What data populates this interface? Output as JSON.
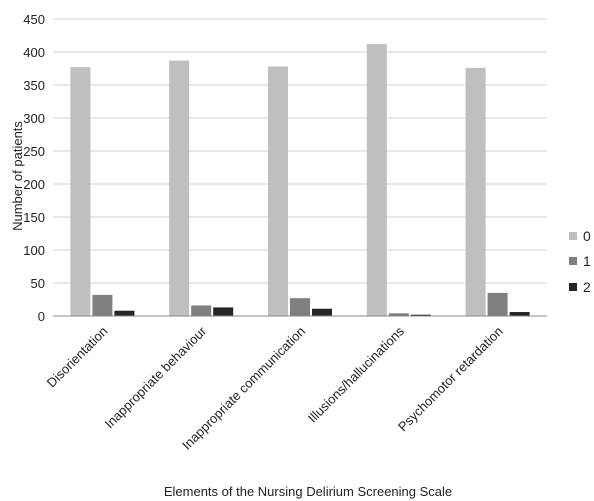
{
  "chart_data": {
    "type": "bar",
    "title": "",
    "xlabel": "Elements of the Nursing Delirium  Screening Scale",
    "ylabel": "Number of patients",
    "ylim": [
      0,
      450
    ],
    "yticks": [
      0,
      50,
      100,
      150,
      200,
      250,
      300,
      350,
      400,
      450
    ],
    "grid": true,
    "legend_position": "right",
    "categories": [
      "Disorientation",
      "Inappropriate behaviour",
      "Inappropriate communication",
      "Illusions/hallucinations",
      "Psychomotor retardation"
    ],
    "series": [
      {
        "name": "0",
        "color": "#bfbfbf",
        "values": [
          377,
          387,
          378,
          412,
          376
        ]
      },
      {
        "name": "1",
        "color": "#7f7f7f",
        "values": [
          32,
          16,
          27,
          4,
          35
        ]
      },
      {
        "name": "2",
        "color": "#262626",
        "values": [
          8,
          13,
          11,
          2,
          6
        ]
      }
    ]
  }
}
